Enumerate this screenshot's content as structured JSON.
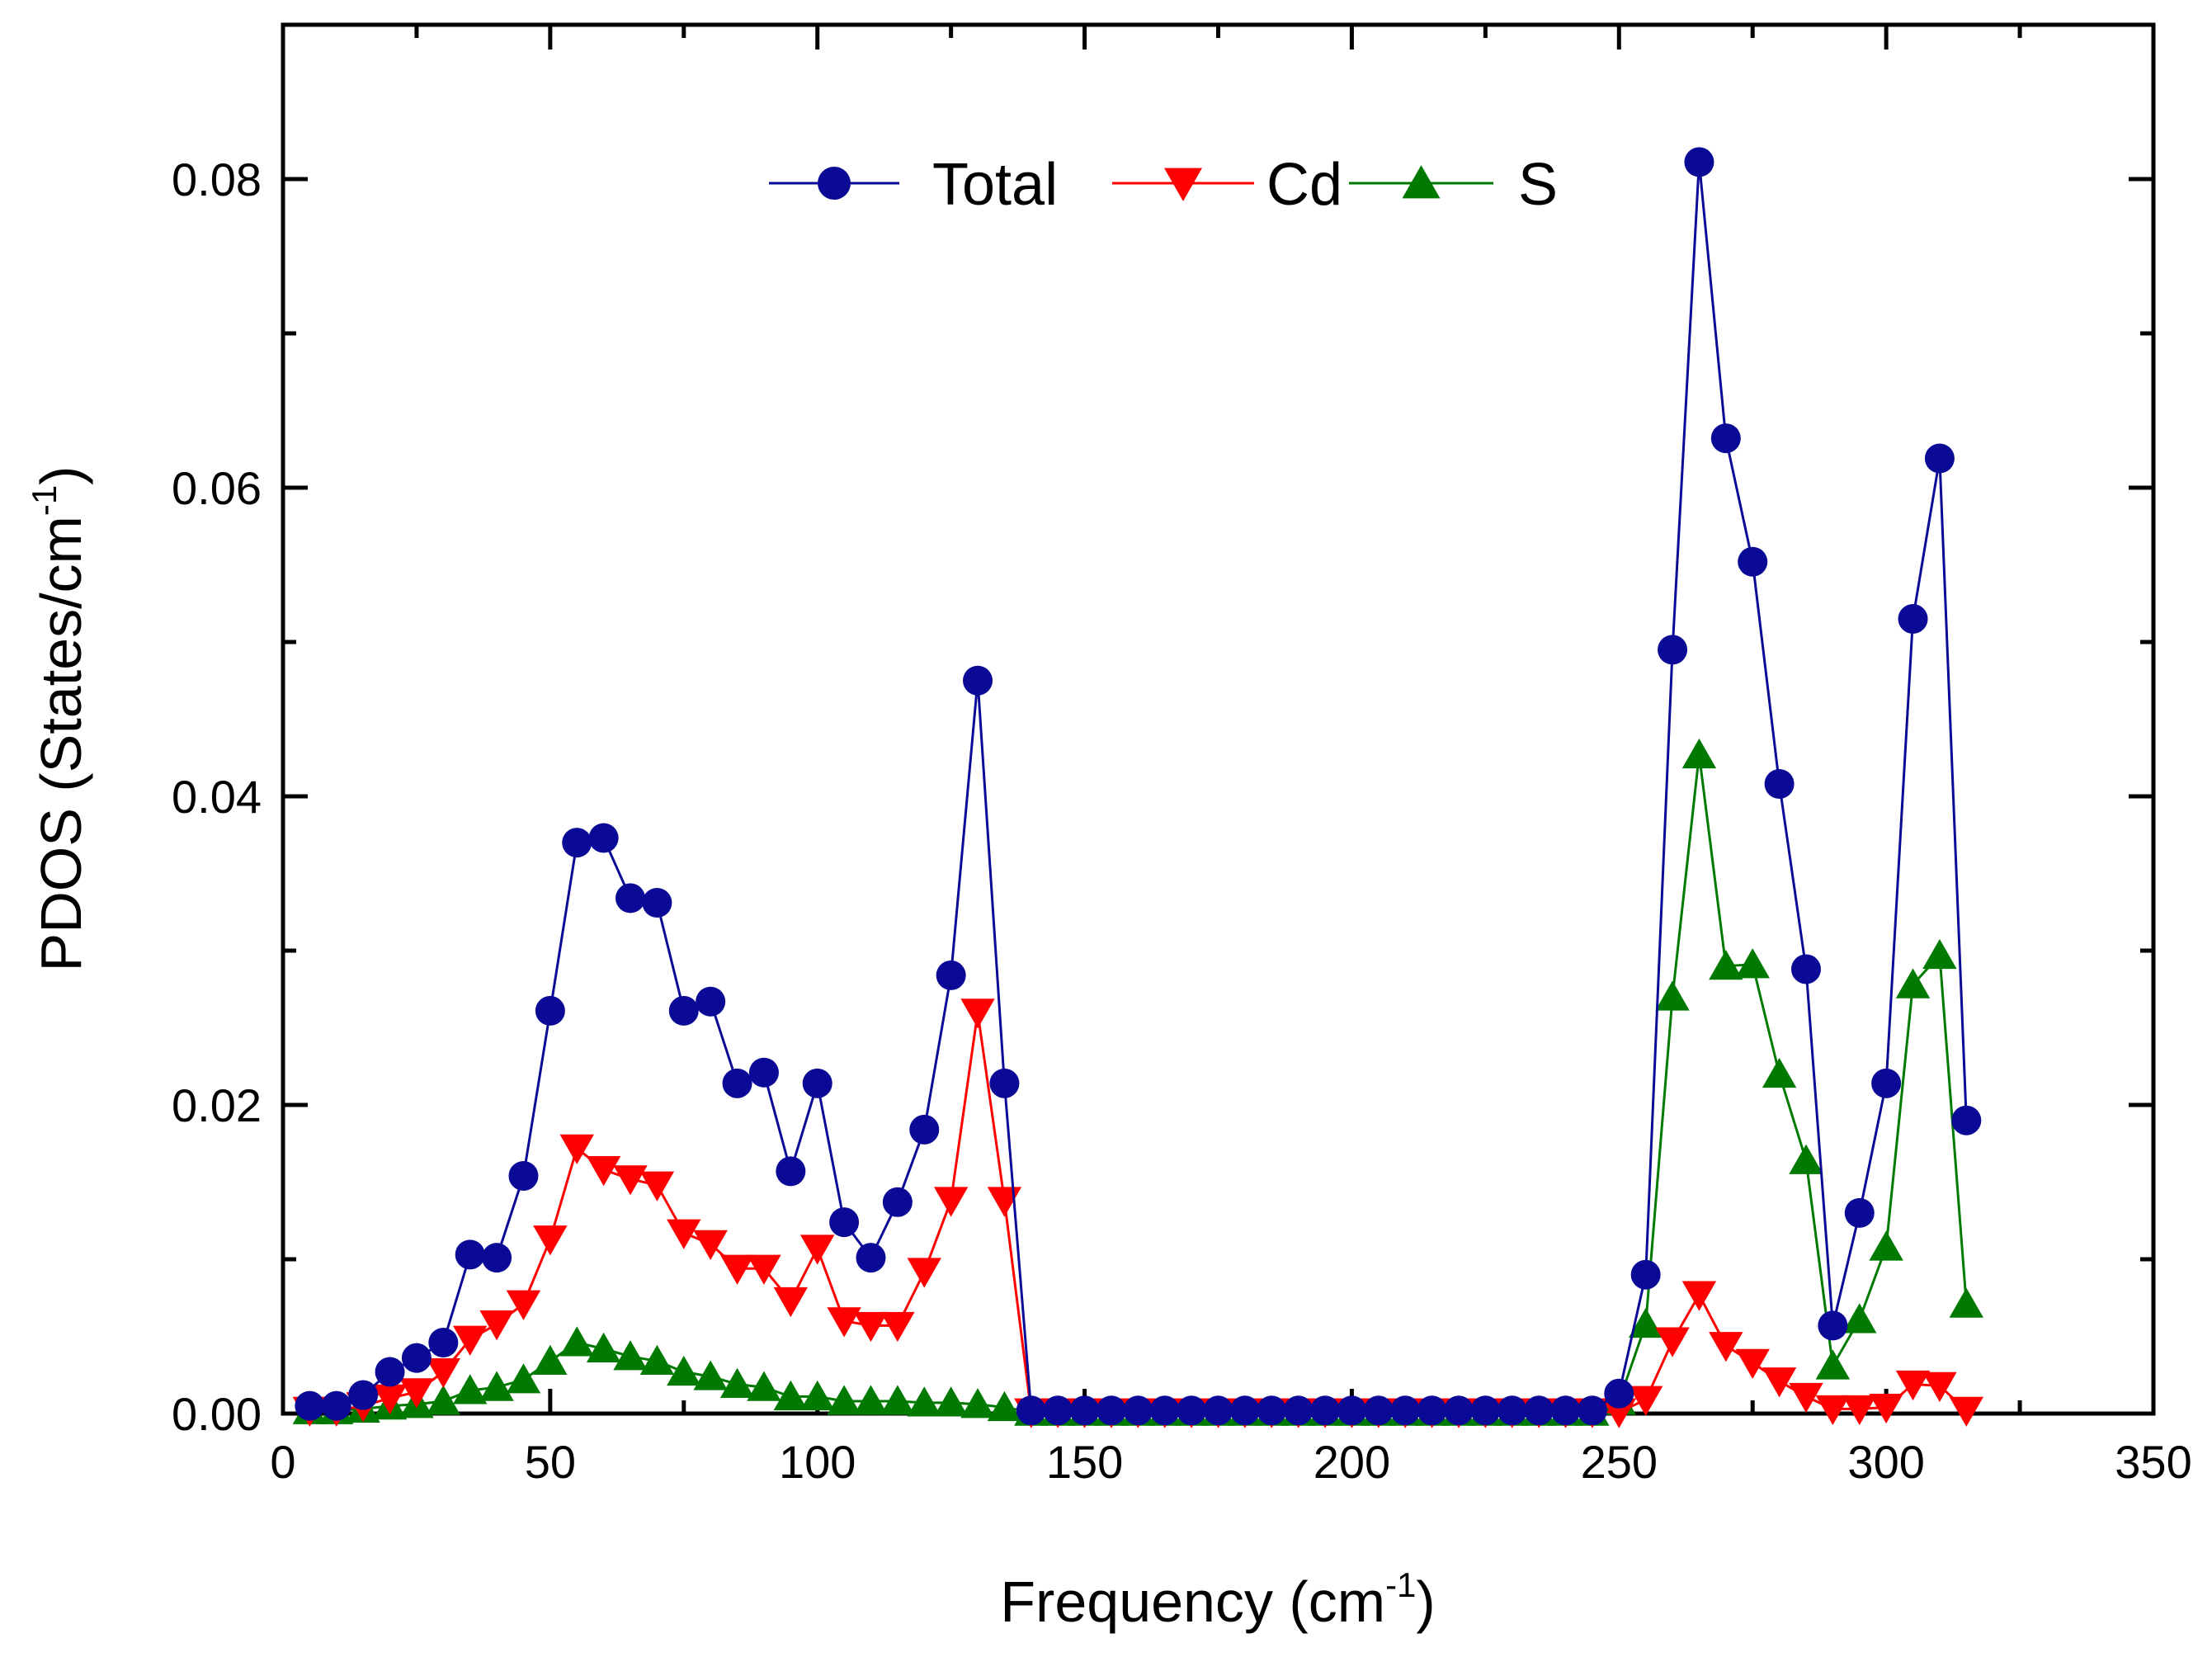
{
  "chart_data": {
    "type": "line",
    "title": "",
    "xlabel": "Frequency (cm",
    "xlabel_sup": "-1",
    "xlabel_tail": ")",
    "ylabel": "PDOS (States/cm",
    "ylabel_sup": "-1",
    "ylabel_tail": ")",
    "xlim": [
      0,
      350
    ],
    "ylim": [
      0,
      0.09
    ],
    "xticks": [
      0,
      50,
      100,
      150,
      200,
      250,
      300,
      350
    ],
    "xtick_labels": [
      "0",
      "50",
      "100",
      "150",
      "200",
      "250",
      "300",
      "350"
    ],
    "yticks": [
      0,
      0.02,
      0.04,
      0.06,
      0.08
    ],
    "ytick_labels": [
      "0.00",
      "0.02",
      "0.04",
      "0.06",
      "0.08"
    ],
    "grid": false,
    "legend_position": "top-center",
    "x": [
      5,
      10,
      15,
      20,
      25,
      30,
      35,
      40,
      45,
      50,
      55,
      60,
      65,
      70,
      75,
      80,
      85,
      90,
      95,
      100,
      105,
      110,
      115,
      120,
      125,
      130,
      135,
      140,
      145,
      150,
      155,
      160,
      165,
      170,
      175,
      180,
      185,
      190,
      195,
      200,
      205,
      210,
      215,
      220,
      225,
      230,
      235,
      240,
      245,
      250,
      255,
      260,
      265,
      270,
      275,
      280,
      285,
      290,
      295,
      300,
      305,
      310,
      315
    ],
    "series": [
      {
        "name": "Total",
        "color": "#0a0a96",
        "marker": "circle",
        "values": [
          0.0005,
          0.0005,
          0.0012,
          0.0027,
          0.0036,
          0.0046,
          0.0103,
          0.0101,
          0.0154,
          0.0261,
          0.037,
          0.0373,
          0.0334,
          0.0331,
          0.0261,
          0.0267,
          0.0214,
          0.0221,
          0.0157,
          0.0214,
          0.0124,
          0.0101,
          0.0137,
          0.0184,
          0.0284,
          0.0475,
          0.0214,
          0.0002,
          0.0002,
          0.0002,
          0.0002,
          0.0002,
          0.0002,
          0.0002,
          0.0002,
          0.0002,
          0.0002,
          0.0002,
          0.0002,
          0.0002,
          0.0002,
          0.0002,
          0.0002,
          0.0002,
          0.0002,
          0.0002,
          0.0002,
          0.0002,
          0.0002,
          0.0013,
          0.009,
          0.0495,
          0.0811,
          0.0632,
          0.0552,
          0.0408,
          0.0288,
          0.0057,
          0.013,
          0.0214,
          0.0515,
          0.0619,
          0.019
        ]
      },
      {
        "name": "Cd",
        "color": "#ff0000",
        "marker": "triangle-down",
        "values": [
          0.0002,
          0.0002,
          0.0005,
          0.001,
          0.0014,
          0.0027,
          0.0048,
          0.0058,
          0.0071,
          0.0113,
          0.0172,
          0.0158,
          0.0152,
          0.0148,
          0.0117,
          0.011,
          0.0094,
          0.0094,
          0.0073,
          0.0107,
          0.006,
          0.0057,
          0.0057,
          0.0092,
          0.0138,
          0.026,
          0.0138,
          0.0001,
          0.0001,
          0.0001,
          0.0001,
          0.0001,
          0.0001,
          0.0001,
          0.0001,
          0.0001,
          0.0001,
          0.0001,
          0.0001,
          0.0001,
          0.0001,
          0.0001,
          0.0001,
          0.0001,
          0.0001,
          0.0001,
          0.0001,
          0.0001,
          0.0001,
          0.0001,
          0.0009,
          0.0047,
          0.0077,
          0.0044,
          0.0033,
          0.0021,
          0.0011,
          0.0003,
          0.0003,
          0.0004,
          0.0019,
          0.0018,
          0.0002
        ]
      },
      {
        "name": "S",
        "color": "#007a00",
        "marker": "triangle-up",
        "values": [
          0.0002,
          0.0002,
          0.0003,
          0.0005,
          0.0006,
          0.0008,
          0.0015,
          0.0017,
          0.0022,
          0.0034,
          0.0046,
          0.0042,
          0.0037,
          0.0034,
          0.0027,
          0.0024,
          0.0019,
          0.0017,
          0.0011,
          0.0011,
          0.0008,
          0.0008,
          0.0008,
          0.0007,
          0.0007,
          0.0006,
          0.0004,
          0.0001,
          0.0001,
          0.0001,
          0.0001,
          0.0001,
          0.0001,
          0.0001,
          0.0001,
          0.0001,
          0.0001,
          0.0001,
          0.0001,
          0.0001,
          0.0001,
          0.0001,
          0.0001,
          0.0001,
          0.0001,
          0.0001,
          0.0001,
          0.0001,
          0.0001,
          0.0008,
          0.0058,
          0.027,
          0.0427,
          0.029,
          0.0291,
          0.022,
          0.0164,
          0.0031,
          0.0061,
          0.0108,
          0.0278,
          0.0297,
          0.0071
        ]
      }
    ]
  }
}
